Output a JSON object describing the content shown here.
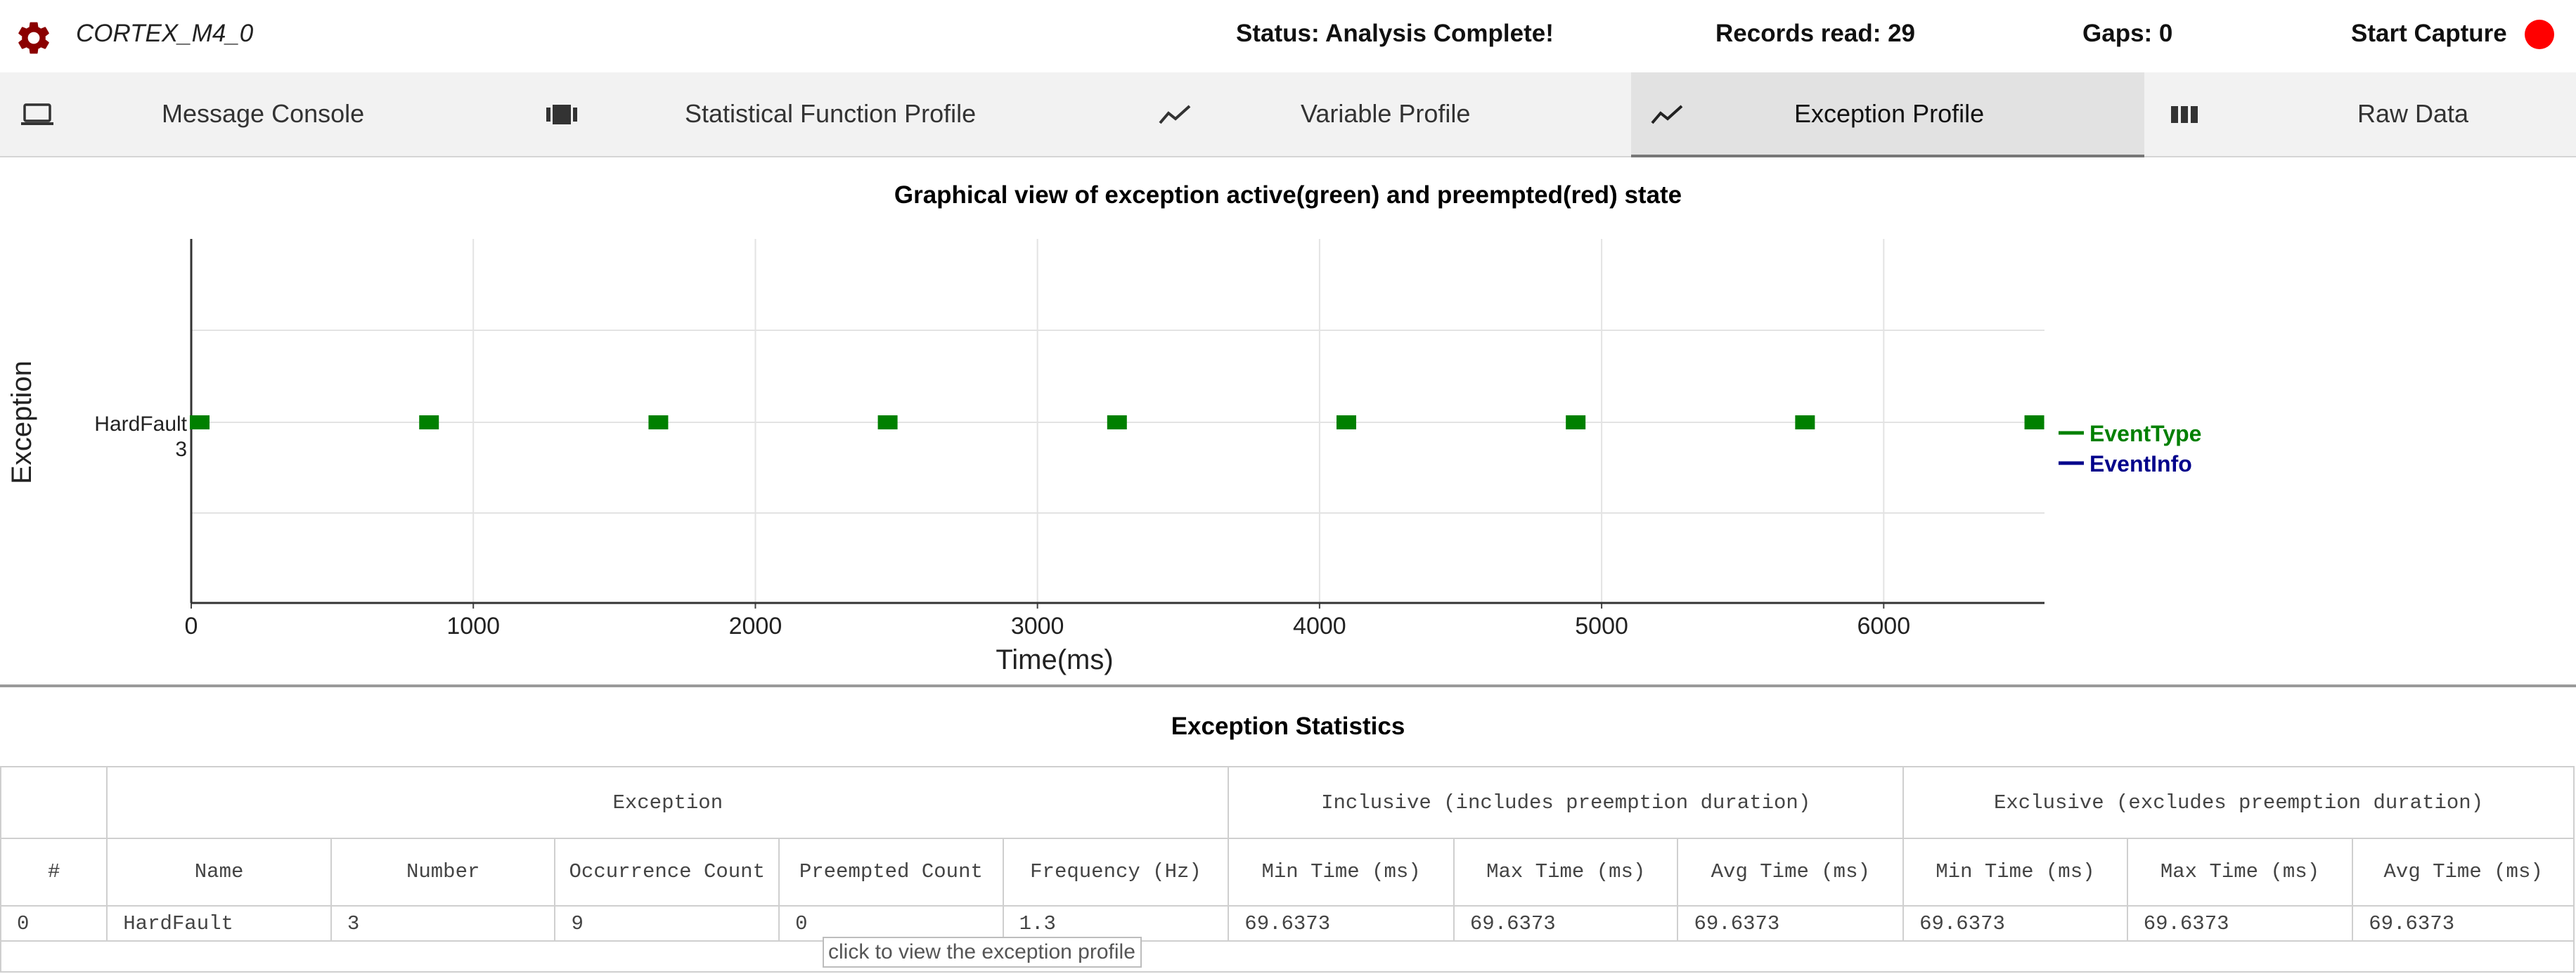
{
  "header": {
    "device_name": "CORTEX_M4_0",
    "status": "Status: Analysis Complete!",
    "records": "Records read: 29",
    "gaps": "Gaps: 0",
    "start_capture": "Start Capture",
    "record_color": "#ff0000",
    "gear_icon": "gear-icon"
  },
  "tabs": [
    {
      "label": "Message Console",
      "icon": "laptop-icon",
      "active": false
    },
    {
      "label": "Statistical Function Profile",
      "icon": "film-icon",
      "active": false
    },
    {
      "label": "Variable Profile",
      "icon": "trend-line-icon",
      "active": false
    },
    {
      "label": "Exception Profile",
      "icon": "trend-line-icon",
      "active": true
    },
    {
      "label": "Raw Data",
      "icon": "columns-icon",
      "active": false
    }
  ],
  "chart_data": {
    "type": "scatter",
    "title": "Graphical view of exception active(green) and preempted(red) state",
    "xlabel": "Time(ms)",
    "ylabel": "Exception",
    "xlim": [
      0,
      6570
    ],
    "x_ticks": [
      0,
      1000,
      2000,
      3000,
      4000,
      5000,
      6000
    ],
    "categories": [
      "HardFault",
      "3"
    ],
    "grid": true,
    "legend_position": "right",
    "series": [
      {
        "name": "EventType",
        "color": "#008000",
        "x": [
          30,
          843,
          1656,
          2469,
          3282,
          4095,
          4908,
          5721,
          6534
        ]
      },
      {
        "name": "EventInfo",
        "color": "#00008b",
        "x": []
      }
    ]
  },
  "stats": {
    "title": "Exception Statistics",
    "groups": {
      "exception": "Exception",
      "inclusive": "Inclusive (includes preemption duration)",
      "exclusive": "Exclusive (excludes preemption duration)"
    },
    "columns": [
      "#",
      "Name",
      "Number",
      "Occurrence Count",
      "Preempted Count",
      "Frequency (Hz)",
      "Min Time (ms)",
      "Max Time (ms)",
      "Avg Time (ms)",
      "Min Time (ms)",
      "Max Time (ms)",
      "Avg Time (ms)"
    ],
    "rows": [
      [
        "0",
        "HardFault",
        "3",
        "9",
        "0",
        "1.3",
        "69.6373",
        "69.6373",
        "69.6373",
        "69.6373",
        "69.6373",
        "69.6373"
      ]
    ],
    "tooltip": "click to view the exception profile"
  }
}
